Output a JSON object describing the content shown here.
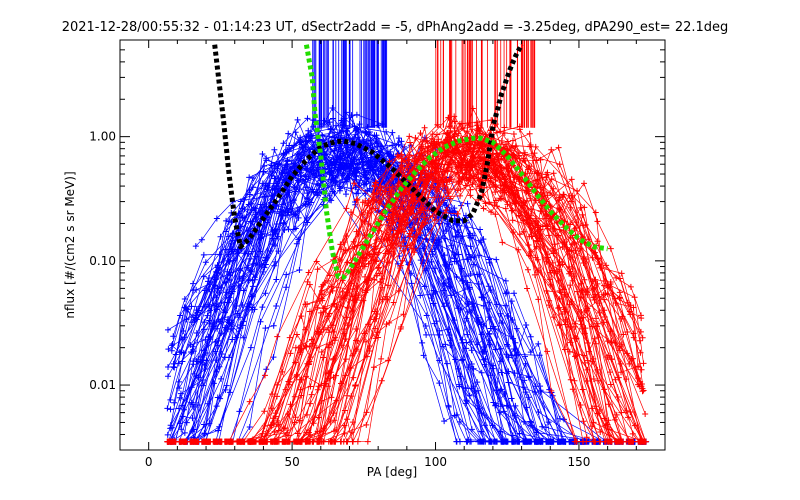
{
  "chart_data": {
    "type": "line",
    "title": "2021-12-28/00:55:32 - 01:14:23 UT, dSectr2add = -5, dPhAng2add = -3.25deg, dPA290_est=  22.1deg",
    "xlabel": "PA [deg]",
    "ylabel": "nflux [#/(cm2 s sr MeV)]",
    "xlim": [
      -10,
      180
    ],
    "ylim": [
      0.003,
      6.0
    ],
    "yscale": "log",
    "grid": false,
    "x_ticks": [
      {
        "value": 0,
        "label": "0"
      },
      {
        "value": 50,
        "label": "50"
      },
      {
        "value": 100,
        "label": "100"
      },
      {
        "value": 150,
        "label": "150"
      }
    ],
    "y_ticks": [
      {
        "value": 0.01,
        "label": "0.01"
      },
      {
        "value": 0.1,
        "label": "0.10"
      },
      {
        "value": 1,
        "label": "1.00"
      }
    ],
    "colors": {
      "blue": "#0000ff",
      "red": "#ff0000",
      "black": "#000000",
      "green": "#22dd00"
    },
    "series": [
      {
        "color": "black",
        "style": "thick-dashed",
        "x": [
          23,
          26,
          28,
          30,
          32,
          35,
          40,
          45,
          50,
          55,
          60,
          65,
          68,
          72,
          78,
          85,
          92,
          100,
          106,
          110,
          113,
          116,
          118,
          120,
          123,
          126,
          128,
          130
        ],
        "y": [
          5.5,
          1.4,
          0.5,
          0.22,
          0.13,
          0.15,
          0.22,
          0.32,
          0.48,
          0.65,
          0.83,
          0.91,
          0.92,
          0.88,
          0.75,
          0.55,
          0.38,
          0.25,
          0.21,
          0.21,
          0.24,
          0.35,
          0.6,
          1.2,
          2.2,
          3.5,
          4.5,
          5.5
        ]
      },
      {
        "color": "green",
        "style": "thick-dashed",
        "x": [
          55,
          57,
          58,
          60,
          62,
          64,
          66,
          68,
          70,
          73,
          78,
          83,
          88,
          93,
          98,
          103,
          108,
          113,
          116,
          120,
          125,
          130,
          135,
          140,
          145,
          150,
          155,
          160
        ],
        "y": [
          5.5,
          3.0,
          1.5,
          0.7,
          0.25,
          0.12,
          0.075,
          0.074,
          0.085,
          0.11,
          0.17,
          0.26,
          0.38,
          0.52,
          0.68,
          0.82,
          0.92,
          0.97,
          0.97,
          0.9,
          0.7,
          0.5,
          0.35,
          0.25,
          0.19,
          0.15,
          0.13,
          0.125
        ]
      }
    ],
    "bundles": [
      {
        "color": "blue",
        "peak_pa": 68,
        "peak_flux": 0.95,
        "description": "blue '+' marked curves"
      },
      {
        "color": "red",
        "peak_pa": 112,
        "peak_flux": 0.95,
        "description": "red '+' marked curves"
      }
    ]
  }
}
